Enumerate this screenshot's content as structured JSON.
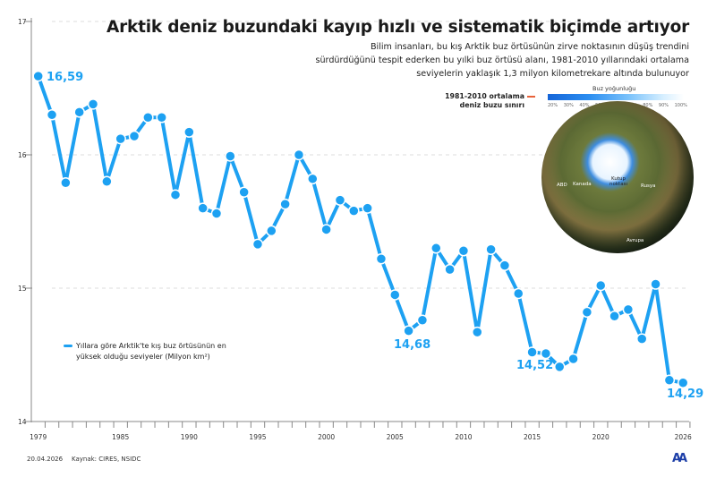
{
  "title": "Arktik deniz buzundaki kayıp hızlı ve sistematik biçimde artıyor",
  "subtitle": "Bilim insanları, bu kış Arktik buz örtüsünün zirve noktasının düşüş trendini sürdürdüğünü tespit ederken bu yılki buz örtüsü alanı, 1981-2010 yıllarındaki ortalama seviyelerin yaklaşık 1,3 milyon kilometrekare altında bulunuyor",
  "map_legend": {
    "avg_line_label_1": "1981-2010 ortalama",
    "avg_line_label_2": "deniz buzu sınırı",
    "colorbar_title": "Buz yoğunluğu",
    "colorbar_ticks": [
      "20%",
      "30%",
      "40%",
      "50%",
      "60%",
      "70%",
      "80%",
      "90%",
      "100%"
    ],
    "colors": {
      "avg_line": "#e8623a",
      "ice": "#1565d8"
    }
  },
  "map_labels": {
    "abd": "ABD",
    "kanada": "Kanada",
    "pole": "Kutup noktası",
    "rusya": "Rusya",
    "avrupa": "Avrupa"
  },
  "footer": {
    "date": "20.04.2026",
    "source": "Kaynak: CIRES, NSIDC",
    "logo": "AA"
  },
  "chart_data": {
    "type": "line",
    "legend": "Yıllara göre Arktik'te kış buz örtüsünün en yüksek olduğu seviyeler (Milyon km²)",
    "color": "#1da1f2",
    "x": [
      1979,
      1980,
      1981,
      1982,
      1983,
      1984,
      1985,
      1986,
      1987,
      1988,
      1989,
      1990,
      1991,
      1992,
      1993,
      1994,
      1995,
      1996,
      1997,
      1998,
      1999,
      2000,
      2001,
      2002,
      2003,
      2004,
      2005,
      2006,
      2007,
      2008,
      2009,
      2010,
      2011,
      2012,
      2013,
      2014,
      2015,
      2016,
      2017,
      2018,
      2019,
      2020,
      2021,
      2022,
      2023,
      2024,
      2025,
      2026
    ],
    "values": [
      16.59,
      16.3,
      15.79,
      16.32,
      16.38,
      15.8,
      16.12,
      16.14,
      16.28,
      16.28,
      15.7,
      16.17,
      15.6,
      15.56,
      15.99,
      15.72,
      15.33,
      15.43,
      15.63,
      16.0,
      15.82,
      15.44,
      15.66,
      15.58,
      15.6,
      15.22,
      14.95,
      14.68,
      14.76,
      15.3,
      15.14,
      15.28,
      14.67,
      15.29,
      15.17,
      14.96,
      14.52,
      14.51,
      14.41,
      14.47,
      14.82,
      15.02,
      14.79,
      14.84,
      14.62,
      15.03,
      14.31,
      14.29
    ],
    "ylim": [
      14,
      17
    ],
    "yticks": [
      "14",
      "15",
      "16",
      "17"
    ],
    "xticks": [
      "1979",
      "1985",
      "1990",
      "1995",
      "2000",
      "2005",
      "2010",
      "2015",
      "2020",
      "2026"
    ],
    "annotations": [
      {
        "year": 1979,
        "text": "16,59"
      },
      {
        "year": 2006,
        "text": "14,68"
      },
      {
        "year": 2015,
        "text": "14,52"
      },
      {
        "year": 2026,
        "text": "14,29"
      }
    ],
    "grid": "dashed horizontal"
  }
}
